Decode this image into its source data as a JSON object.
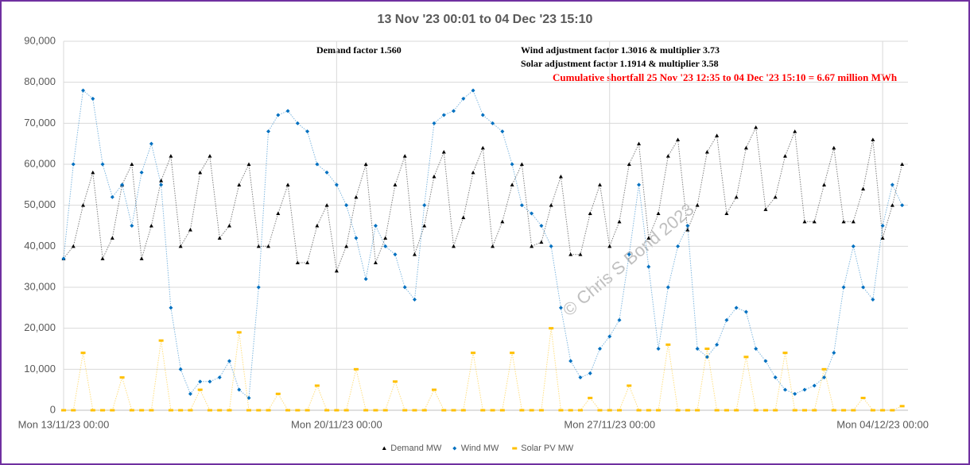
{
  "chart_data": {
    "type": "scatter",
    "title": "13 Nov '23 00:01 to 04 Dec '23 15:10",
    "annotations": [
      "Demand factor 1.560",
      "Wind adjustment factor 1.3016 & multiplier 3.73",
      "Solar adjustment factor 1.1914 & multiplier 3.58",
      "Cumulative shortfall 25 Nov '23 12:35 to 04 Dec '23 15:10  =  6.67 million MWh",
      "© Chris S Bond 2023"
    ],
    "x": [
      0,
      0.25,
      0.5,
      0.75,
      1,
      1.25,
      1.5,
      1.75,
      2,
      2.25,
      2.5,
      2.75,
      3,
      3.25,
      3.5,
      3.75,
      4,
      4.25,
      4.5,
      4.75,
      5,
      5.25,
      5.5,
      5.75,
      6,
      6.25,
      6.5,
      6.75,
      7,
      7.25,
      7.5,
      7.75,
      8,
      8.25,
      8.5,
      8.75,
      9,
      9.25,
      9.5,
      9.75,
      10,
      10.25,
      10.5,
      10.75,
      11,
      11.25,
      11.5,
      11.75,
      12,
      12.25,
      12.5,
      12.75,
      13,
      13.25,
      13.5,
      13.75,
      14,
      14.25,
      14.5,
      14.75,
      15,
      15.25,
      15.5,
      15.75,
      16,
      16.25,
      16.5,
      16.75,
      17,
      17.25,
      17.5,
      17.75,
      18,
      18.25,
      18.5,
      18.75,
      19,
      19.25,
      19.5,
      19.75,
      20,
      20.25,
      20.5,
      20.75,
      21,
      21.25,
      21.5
    ],
    "series": [
      {
        "name": "Demand MW",
        "color": "#000000",
        "marker": "triangle",
        "values": [
          37000,
          40000,
          50000,
          58000,
          37000,
          42000,
          55000,
          60000,
          37000,
          45000,
          56000,
          62000,
          40000,
          44000,
          58000,
          62000,
          42000,
          45000,
          55000,
          60000,
          40000,
          40000,
          48000,
          55000,
          36000,
          36000,
          45000,
          50000,
          34000,
          40000,
          52000,
          60000,
          36000,
          42000,
          55000,
          62000,
          38000,
          45000,
          57000,
          63000,
          40000,
          47000,
          58000,
          64000,
          40000,
          46000,
          55000,
          60000,
          40000,
          41000,
          50000,
          57000,
          38000,
          38000,
          48000,
          55000,
          40000,
          46000,
          60000,
          65000,
          42000,
          48000,
          62000,
          66000,
          44000,
          50000,
          63000,
          67000,
          48000,
          52000,
          64000,
          69000,
          49000,
          52000,
          62000,
          68000,
          46000,
          46000,
          55000,
          64000,
          46000,
          46000,
          54000,
          66000,
          42000,
          50000,
          60000
        ]
      },
      {
        "name": "Wind MW",
        "color": "#0070c0",
        "marker": "diamond",
        "values": [
          37000,
          60000,
          78000,
          76000,
          60000,
          52000,
          55000,
          45000,
          58000,
          65000,
          55000,
          25000,
          10000,
          4000,
          7000,
          7000,
          8000,
          12000,
          5000,
          3000,
          30000,
          68000,
          72000,
          73000,
          70000,
          68000,
          60000,
          58000,
          55000,
          50000,
          42000,
          32000,
          45000,
          40000,
          38000,
          30000,
          27000,
          50000,
          70000,
          72000,
          73000,
          76000,
          78000,
          72000,
          70000,
          68000,
          60000,
          50000,
          48000,
          45000,
          40000,
          25000,
          12000,
          8000,
          9000,
          15000,
          18000,
          22000,
          38000,
          55000,
          35000,
          15000,
          30000,
          40000,
          45000,
          15000,
          13000,
          16000,
          22000,
          25000,
          24000,
          15000,
          12000,
          8000,
          5000,
          4000,
          5000,
          6000,
          8000,
          14000,
          30000,
          40000,
          30000,
          27000,
          45000,
          55000,
          50000
        ]
      },
      {
        "name": "Solar PV MW",
        "color": "#ffc000",
        "marker": "dash",
        "values": [
          0,
          0,
          14000,
          0,
          0,
          0,
          8000,
          0,
          0,
          0,
          17000,
          0,
          0,
          0,
          5000,
          0,
          0,
          0,
          19000,
          0,
          0,
          0,
          4000,
          0,
          0,
          0,
          6000,
          0,
          0,
          0,
          10000,
          0,
          0,
          0,
          7000,
          0,
          0,
          0,
          5000,
          0,
          0,
          0,
          14000,
          0,
          0,
          0,
          14000,
          0,
          0,
          0,
          20000,
          0,
          0,
          0,
          3000,
          0,
          0,
          0,
          6000,
          0,
          0,
          0,
          16000,
          0,
          0,
          0,
          15000,
          0,
          0,
          0,
          13000,
          0,
          0,
          0,
          14000,
          0,
          0,
          0,
          10000,
          0,
          0,
          0,
          3000,
          0,
          0,
          0,
          1000
        ]
      }
    ],
    "xlim": [
      0,
      21.65
    ],
    "xticks": [
      {
        "value": 0,
        "label": "Mon 13/11/23 00:00"
      },
      {
        "value": 7,
        "label": "Mon 20/11/23 00:00"
      },
      {
        "value": 14,
        "label": "Mon 27/11/23 00:00"
      },
      {
        "value": 21,
        "label": "Mon 04/12/23 00:00"
      }
    ],
    "ylim": [
      0,
      90000
    ],
    "yticks": [
      0,
      {
        "value": 10000,
        "label": "10,000"
      },
      {
        "value": 20000,
        "label": "20,000"
      },
      {
        "value": 30000,
        "label": "30,000"
      },
      {
        "value": 40000,
        "label": "40,000"
      },
      {
        "value": 50000,
        "label": "50,000"
      },
      {
        "value": 60000,
        "label": "60,000"
      },
      {
        "value": 70000,
        "label": "70,000"
      },
      {
        "value": 80000,
        "label": "80,000"
      },
      {
        "value": 90000,
        "label": "90,000"
      }
    ],
    "grid": true,
    "legend": "bottom"
  }
}
